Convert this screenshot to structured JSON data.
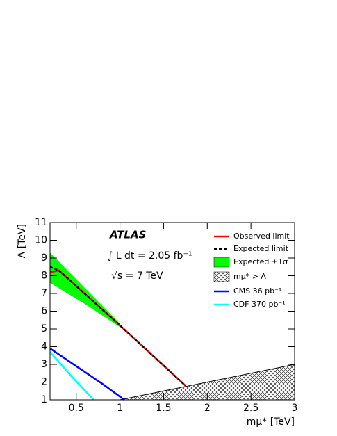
{
  "chart_data": {
    "type": "line",
    "x_label": "mμ* [TeV]",
    "y_label": "Λ [TeV]",
    "annotations": [
      "ATLAS",
      "∫ L dt = 2.05 fb⁻¹",
      "√s = 7 TeV"
    ],
    "xlim": [
      0.2,
      3
    ],
    "ylim": [
      1,
      11
    ],
    "xticks": [
      0.5,
      1,
      1.5,
      2,
      2.5,
      3
    ],
    "yticks": [
      1,
      2,
      3,
      4,
      5,
      6,
      7,
      8,
      9,
      10,
      11
    ],
    "series": [
      {
        "name": "Observed limit",
        "kind": "line",
        "color": "#ff0000",
        "x": [
          0.2,
          0.3,
          1.0,
          1.75
        ],
        "values": [
          8.2,
          8.3,
          5.2,
          1.8
        ]
      },
      {
        "name": "Expected limit",
        "kind": "dashed",
        "color": "#000000",
        "x": [
          0.2,
          0.25,
          0.3,
          1.0,
          1.75
        ],
        "values": [
          8.5,
          8.4,
          8.3,
          5.2,
          1.8
        ]
      },
      {
        "name": "Expected ±1σ",
        "kind": "band",
        "color": "#00ff00",
        "x": [
          0.2,
          0.6,
          1.0
        ],
        "low": [
          7.6,
          6.4,
          5.1
        ],
        "high": [
          9.3,
          7.3,
          5.3
        ]
      },
      {
        "name": "mμ* > Λ",
        "kind": "hatch",
        "color": "#000000",
        "x": [
          1.0,
          3,
          3
        ],
        "values": [
          1,
          3,
          1
        ]
      },
      {
        "name": "CMS 36 pb⁻¹",
        "kind": "line",
        "color": "#0000ff",
        "x": [
          0.2,
          0.5,
          0.8,
          1.05
        ],
        "values": [
          3.9,
          2.9,
          1.9,
          1.0
        ]
      },
      {
        "name": "CDF 370 pb⁻¹",
        "kind": "line",
        "color": "#00ffff",
        "x": [
          0.2,
          0.45,
          0.7
        ],
        "values": [
          3.7,
          2.3,
          1.0
        ]
      }
    ]
  }
}
